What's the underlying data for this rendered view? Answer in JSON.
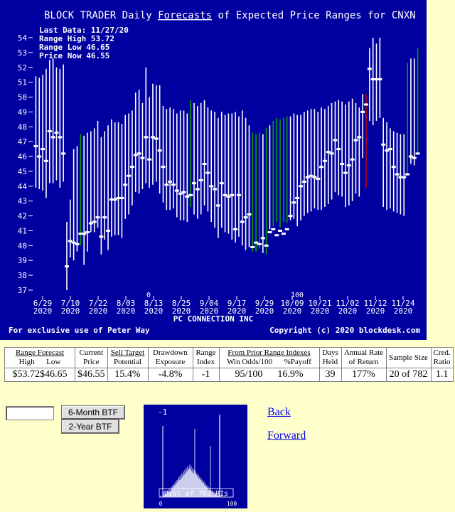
{
  "chart_title_parts": [
    "BLOCK TRADER Daily ",
    "Forecasts",
    " of Expected Price Ranges for  CNXN"
  ],
  "info_lines": [
    "Last Data: 11/27/20",
    "Range High 53.72",
    "Range Low  46.65",
    "Price Now  46.55"
  ],
  "company": "PC CONNECTION INC",
  "footer_left": "For exclusive use of Peter Way",
  "footer_right": "Copyright (c) 2020 blockdesk.com",
  "chart_data": {
    "type": "range",
    "ylim": [
      36.5,
      55
    ],
    "y_ticks": [
      37,
      38,
      39,
      40,
      41,
      42,
      43,
      44,
      45,
      46,
      47,
      48,
      49,
      50,
      51,
      52,
      53,
      54
    ],
    "x_ticks": [
      {
        "date": "6/29",
        "year": "2020"
      },
      {
        "date": "7/10",
        "year": "2020"
      },
      {
        "date": "7/22",
        "year": "2020"
      },
      {
        "date": "8/03",
        "year": "2020"
      },
      {
        "date": "8/13",
        "year": "2020"
      },
      {
        "date": "8/25",
        "year": "2020"
      },
      {
        "date": "9/04",
        "year": "2020"
      },
      {
        "date": "9/17",
        "year": "2020"
      },
      {
        "date": "9/29",
        "year": "2020"
      },
      {
        "date": "10/09",
        "year": "2020"
      },
      {
        "date": "10/21",
        "year": "2020"
      },
      {
        "date": "11/02",
        "year": "2020"
      },
      {
        "date": "11/12",
        "year": "2020"
      },
      {
        "date": "11/24",
        "year": "2020"
      }
    ],
    "bottom_marks": [
      "0",
      "100"
    ],
    "colors": {
      "bg": "#0000a0",
      "bar": "#ffffff",
      "green": "#00a000",
      "red": "#c00000",
      "price": "#ffffff",
      "text": "#ffffff"
    },
    "series": [
      {
        "h": 51.4,
        "l": 43.9,
        "p": 46.7,
        "c": "w"
      },
      {
        "h": 51.3,
        "l": 43.8,
        "p": 46.0,
        "c": "w"
      },
      {
        "h": 51.5,
        "l": 43.7,
        "p": 46.5,
        "c": "w"
      },
      {
        "h": 51.9,
        "l": 43.2,
        "p": 45.7,
        "c": "w"
      },
      {
        "h": 52.5,
        "l": 44.2,
        "p": 47.7,
        "c": "w"
      },
      {
        "h": 52.6,
        "l": 44.2,
        "p": 47.3,
        "c": "w"
      },
      {
        "h": 52.0,
        "l": 44.4,
        "p": 47.6,
        "c": "w"
      },
      {
        "h": 51.9,
        "l": 43.9,
        "p": 47.3,
        "c": "w"
      },
      {
        "h": 52.2,
        "l": 44.3,
        "p": 46.2,
        "c": "w"
      },
      {
        "h": 41.6,
        "l": 37.0,
        "p": 38.6,
        "c": "w"
      },
      {
        "h": 43.1,
        "l": 39.2,
        "p": 40.3,
        "c": "w"
      },
      {
        "h": 46.5,
        "l": 39.0,
        "p": 40.2,
        "c": "w"
      },
      {
        "h": 46.7,
        "l": 39.6,
        "p": 40.1,
        "c": "w"
      },
      {
        "h": 47.5,
        "l": 40.0,
        "p": 40.8,
        "c": "g"
      },
      {
        "h": 47.4,
        "l": 38.7,
        "p": 40.8,
        "c": "w"
      },
      {
        "h": 47.6,
        "l": 39.6,
        "p": 40.9,
        "c": "w"
      },
      {
        "h": 47.7,
        "l": 40.9,
        "p": 41.5,
        "c": "w"
      },
      {
        "h": 47.9,
        "l": 40.9,
        "p": 41.6,
        "c": "w"
      },
      {
        "h": 48.4,
        "l": 41.2,
        "p": 41.9,
        "c": "w"
      },
      {
        "h": 47.3,
        "l": 39.4,
        "p": 40.6,
        "c": "w"
      },
      {
        "h": 47.7,
        "l": 40.4,
        "p": 41.9,
        "c": "w"
      },
      {
        "h": 48.1,
        "l": 39.7,
        "p": 41.0,
        "c": "w"
      },
      {
        "h": 48.5,
        "l": 40.6,
        "p": 43.1,
        "c": "w"
      },
      {
        "h": 48.3,
        "l": 40.7,
        "p": 43.1,
        "c": "w"
      },
      {
        "h": 48.3,
        "l": 40.7,
        "p": 43.2,
        "c": "w"
      },
      {
        "h": 48.2,
        "l": 40.5,
        "p": 43.2,
        "c": "w"
      },
      {
        "h": 48.8,
        "l": 41.8,
        "p": 44.1,
        "c": "w"
      },
      {
        "h": 48.9,
        "l": 42.1,
        "p": 44.7,
        "c": "w"
      },
      {
        "h": 49.1,
        "l": 42.7,
        "p": 45.3,
        "c": "w"
      },
      {
        "h": 50.3,
        "l": 43.6,
        "p": 46.1,
        "c": "w"
      },
      {
        "h": 50.5,
        "l": 43.5,
        "p": 46.2,
        "c": "w"
      },
      {
        "h": 49.6,
        "l": 43.8,
        "p": 45.9,
        "c": "w"
      },
      {
        "h": 52.0,
        "l": 44.2,
        "p": 47.3,
        "c": "w"
      },
      {
        "h": 50.0,
        "l": 43.9,
        "p": 45.8,
        "c": "w"
      },
      {
        "h": 50.9,
        "l": 44.1,
        "p": 47.3,
        "c": "w"
      },
      {
        "h": 50.8,
        "l": 44.3,
        "p": 47.2,
        "c": "w"
      },
      {
        "h": 50.8,
        "l": 43.5,
        "p": 46.4,
        "c": "w"
      },
      {
        "h": 49.4,
        "l": 42.9,
        "p": 45.3,
        "c": "w"
      },
      {
        "h": 49.2,
        "l": 42.4,
        "p": 44.1,
        "c": "w"
      },
      {
        "h": 49.3,
        "l": 42.4,
        "p": 44.3,
        "c": "w"
      },
      {
        "h": 49.2,
        "l": 42.5,
        "p": 44.1,
        "c": "w"
      },
      {
        "h": 48.9,
        "l": 41.9,
        "p": 43.7,
        "c": "w"
      },
      {
        "h": 49.1,
        "l": 41.7,
        "p": 43.5,
        "c": "w"
      },
      {
        "h": 49.1,
        "l": 41.7,
        "p": 43.6,
        "c": "w"
      },
      {
        "h": 48.9,
        "l": 41.6,
        "p": 43.3,
        "c": "w"
      },
      {
        "h": 49.8,
        "l": 42.6,
        "p": 43.4,
        "c": "g"
      },
      {
        "h": 49.6,
        "l": 42.1,
        "p": 44.2,
        "c": "w"
      },
      {
        "h": 49.4,
        "l": 41.8,
        "p": 43.8,
        "c": "w"
      },
      {
        "h": 49.6,
        "l": 42.1,
        "p": 44.4,
        "c": "w"
      },
      {
        "h": 49.8,
        "l": 42.7,
        "p": 45.5,
        "c": "w"
      },
      {
        "h": 49.3,
        "l": 42.3,
        "p": 44.9,
        "c": "w"
      },
      {
        "h": 49.1,
        "l": 41.6,
        "p": 44.0,
        "c": "w"
      },
      {
        "h": 49.0,
        "l": 41.2,
        "p": 43.8,
        "c": "w"
      },
      {
        "h": 48.6,
        "l": 40.5,
        "p": 42.7,
        "c": "w"
      },
      {
        "h": 49.0,
        "l": 41.2,
        "p": 44.2,
        "c": "w"
      },
      {
        "h": 48.8,
        "l": 40.9,
        "p": 43.4,
        "c": "w"
      },
      {
        "h": 48.9,
        "l": 40.8,
        "p": 43.3,
        "c": "w"
      },
      {
        "h": 48.9,
        "l": 40.4,
        "p": 43.4,
        "c": "w"
      },
      {
        "h": 49.0,
        "l": 40.2,
        "p": 41.1,
        "c": "w"
      },
      {
        "h": 48.7,
        "l": 40.6,
        "p": 43.4,
        "c": "w"
      },
      {
        "h": 49.1,
        "l": 40.0,
        "p": 41.6,
        "c": "w"
      },
      {
        "h": 48.6,
        "l": 39.7,
        "p": 41.9,
        "c": "w"
      },
      {
        "h": 48.1,
        "l": 39.9,
        "p": 42.1,
        "c": "w"
      },
      {
        "h": 47.6,
        "l": 39.6,
        "p": 39.9,
        "c": "g"
      },
      {
        "h": 47.5,
        "l": 39.6,
        "p": 40.2,
        "c": "g"
      },
      {
        "h": 47.6,
        "l": 39.8,
        "p": 40.1,
        "c": "g"
      },
      {
        "h": 47.5,
        "l": 39.5,
        "p": 40.5,
        "c": "w"
      },
      {
        "h": 47.9,
        "l": 39.4,
        "p": 40.0,
        "c": "g"
      },
      {
        "h": 48.1,
        "l": 41.1,
        "p": 40.9,
        "c": "w"
      },
      {
        "h": 48.4,
        "l": 41.3,
        "p": 41.1,
        "c": "g"
      },
      {
        "h": 48.6,
        "l": 41.6,
        "p": 40.7,
        "c": "g"
      },
      {
        "h": 48.5,
        "l": 41.2,
        "p": 41.0,
        "c": "g"
      },
      {
        "h": 48.6,
        "l": 41.6,
        "p": 40.8,
        "c": "g"
      },
      {
        "h": 48.7,
        "l": 41.5,
        "p": 41.1,
        "c": "g"
      },
      {
        "h": 48.7,
        "l": 41.7,
        "p": 42.0,
        "c": "w"
      },
      {
        "h": 48.9,
        "l": 41.8,
        "p": 42.9,
        "c": "w"
      },
      {
        "h": 48.8,
        "l": 41.3,
        "p": 43.2,
        "c": "w"
      },
      {
        "h": 48.8,
        "l": 41.7,
        "p": 44.0,
        "c": "w"
      },
      {
        "h": 49.0,
        "l": 42.0,
        "p": 44.3,
        "c": "w"
      },
      {
        "h": 49.1,
        "l": 42.2,
        "p": 44.6,
        "c": "w"
      },
      {
        "h": 49.2,
        "l": 42.3,
        "p": 44.7,
        "c": "w"
      },
      {
        "h": 49.2,
        "l": 42.5,
        "p": 44.6,
        "c": "w"
      },
      {
        "h": 49.0,
        "l": 42.4,
        "p": 44.5,
        "c": "w"
      },
      {
        "h": 49.3,
        "l": 42.4,
        "p": 45.3,
        "c": "w"
      },
      {
        "h": 49.2,
        "l": 42.6,
        "p": 45.7,
        "c": "w"
      },
      {
        "h": 49.4,
        "l": 42.8,
        "p": 46.3,
        "c": "w"
      },
      {
        "h": 49.6,
        "l": 43.1,
        "p": 46.2,
        "c": "w"
      },
      {
        "h": 49.7,
        "l": 43.6,
        "p": 47.1,
        "c": "w"
      },
      {
        "h": 49.8,
        "l": 43.4,
        "p": 46.5,
        "c": "w"
      },
      {
        "h": 49.7,
        "l": 43.3,
        "p": 45.5,
        "c": "w"
      },
      {
        "h": 49.5,
        "l": 42.6,
        "p": 44.9,
        "c": "w"
      },
      {
        "h": 49.7,
        "l": 42.7,
        "p": 45.4,
        "c": "w"
      },
      {
        "h": 49.9,
        "l": 43.0,
        "p": 45.8,
        "c": "w"
      },
      {
        "h": 49.6,
        "l": 43.5,
        "p": 47.1,
        "c": "w"
      },
      {
        "h": 49.3,
        "l": 43.3,
        "p": 47.3,
        "c": "w"
      },
      {
        "h": 50.2,
        "l": 45.9,
        "p": 49.0,
        "c": "w"
      },
      {
        "h": 50.2,
        "l": 43.9,
        "p": 49.5,
        "c": "r"
      },
      {
        "h": 53.3,
        "l": 48.4,
        "p": 51.9,
        "c": "w"
      },
      {
        "h": 54.0,
        "l": 48.1,
        "p": 51.2,
        "c": "w"
      },
      {
        "h": 53.6,
        "l": 48.4,
        "p": 51.2,
        "c": "w"
      },
      {
        "h": 54.0,
        "l": 48.6,
        "p": 51.2,
        "c": "w"
      },
      {
        "h": 48.6,
        "l": 42.6,
        "p": 46.8,
        "c": "w"
      },
      {
        "h": 48.3,
        "l": 42.4,
        "p": 46.4,
        "c": "w"
      },
      {
        "h": 47.9,
        "l": 42.5,
        "p": 46.5,
        "c": "w"
      },
      {
        "h": 47.7,
        "l": 42.3,
        "p": 45.3,
        "c": "w"
      },
      {
        "h": 47.6,
        "l": 42.2,
        "p": 44.8,
        "c": "w"
      },
      {
        "h": 47.5,
        "l": 42.1,
        "p": 44.6,
        "c": "w"
      },
      {
        "h": 47.5,
        "l": 42.0,
        "p": 44.6,
        "c": "w"
      },
      {
        "h": 52.3,
        "l": 44.7,
        "p": 44.8,
        "c": "g"
      },
      {
        "h": 52.6,
        "l": 45.5,
        "p": 46.0,
        "c": "w"
      },
      {
        "h": 52.6,
        "l": 45.4,
        "p": 45.9,
        "c": "w"
      },
      {
        "h": 53.3,
        "l": 46.2,
        "p": 46.2,
        "c": "g"
      }
    ]
  },
  "stats_table": {
    "hdr_range_forecast": "Range Forecast",
    "hdr_high": "High",
    "hdr_low": "Low",
    "hdr_current_price": "Current Price",
    "hdr_sell_target": "Sell Target",
    "hdr_potential": "Potential",
    "hdr_drawdown": "Drawdown Exposure",
    "hdr_range_index": "Range Index",
    "hdr_prior_indexes": "From Prior Range Indexes",
    "hdr_win_odds": "Win Odds/100",
    "hdr_payoff": "%Payoff",
    "hdr_days_held": "Days Held",
    "hdr_annual_rate": "Annual Rate of Return",
    "hdr_sample_size": "Sample Size",
    "hdr_cred_ratio": "Cred. Ratio",
    "val_high": "$53.72",
    "val_low": "$46.65",
    "val_price": "$46.55",
    "val_potential": "15.4%",
    "val_drawdown": "-4.8%",
    "val_range_index": "-1",
    "val_win_odds": "95/100",
    "val_payoff": "16.9%",
    "val_days_held": "39",
    "val_annual_rate": "177%",
    "val_sample_size": "20 of 782",
    "val_cred_ratio": "1.1"
  },
  "controls": {
    "search_value": "",
    "btn_6month": "6-Month BTF",
    "btn_2year": "2-Year BTF"
  },
  "histogram": {
    "marker_label": "-1",
    "caption": "Dist of 782 RIs",
    "axis_min": "0",
    "axis_max": "100",
    "current_index": -1,
    "distribution": [
      1,
      0,
      0,
      0,
      3,
      1,
      2,
      2,
      3,
      2,
      4,
      3,
      5,
      3,
      4,
      6,
      5,
      7,
      6,
      8,
      7,
      9,
      8,
      10,
      9,
      11,
      12,
      10,
      13,
      11,
      14,
      12,
      15,
      13,
      16,
      14,
      17,
      15,
      18,
      16,
      17,
      19,
      16,
      18,
      15,
      17,
      14,
      16,
      40,
      15,
      13,
      14,
      12,
      13,
      11,
      12,
      10,
      11,
      9,
      10,
      8,
      9,
      7,
      8,
      6,
      7,
      5,
      6,
      4,
      5,
      30,
      4,
      3,
      4,
      3,
      2,
      3,
      2,
      2,
      1,
      2,
      1,
      1,
      1,
      0,
      1,
      0,
      1,
      0,
      0,
      1,
      0,
      0,
      0,
      0,
      0,
      0,
      0,
      0,
      0,
      0
    ],
    "line_label_pos": 48
  },
  "nav": {
    "back": "Back",
    "forward": "Forward"
  }
}
